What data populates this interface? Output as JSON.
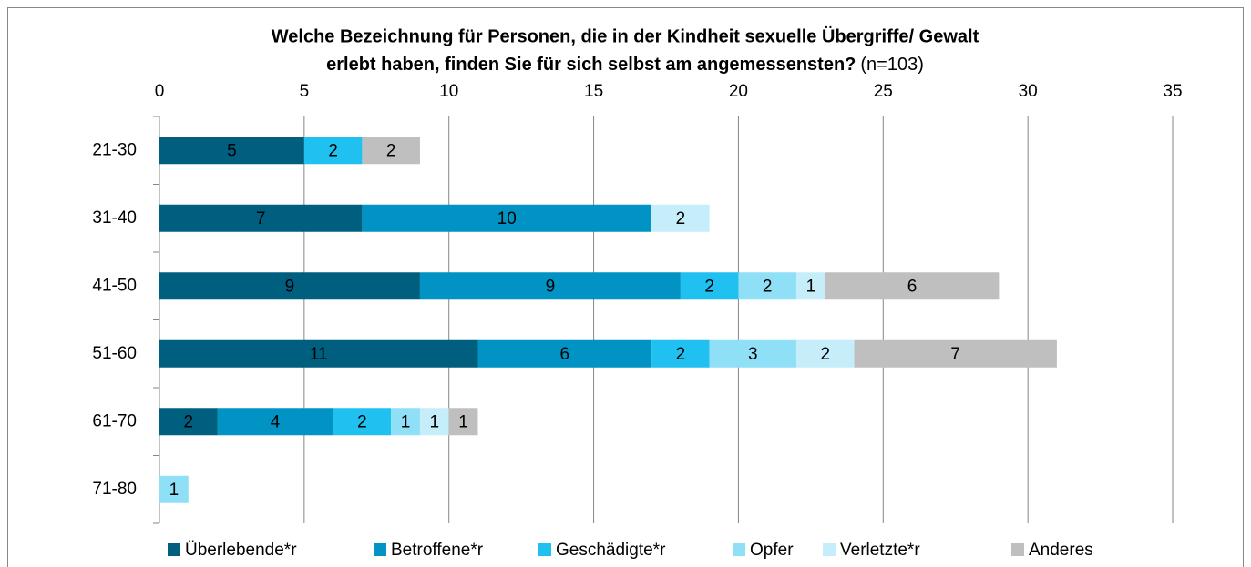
{
  "chart_data": {
    "type": "stacked_bar_horizontal",
    "title": [
      "Welche Bezeichnung für Personen, die in der Kindheit sexuelle Übergriffe/ Gewalt",
      "erlebt haben, finden Sie für sich selbst am angemessensten?"
    ],
    "title_note": "(n=103)",
    "categories": [
      "21-30",
      "31-40",
      "41-50",
      "51-60",
      "61-70",
      "71-80"
    ],
    "series": [
      {
        "name": "Überlebende*r",
        "color": "#005f7f",
        "values": [
          5,
          7,
          9,
          11,
          2,
          null
        ]
      },
      {
        "name": "Betroffene*r",
        "color": "#0093c4",
        "values": [
          null,
          10,
          9,
          6,
          4,
          null
        ]
      },
      {
        "name": "Geschädigte*r",
        "color": "#20c0f0",
        "values": [
          2,
          null,
          2,
          2,
          2,
          null
        ]
      },
      {
        "name": "Opfer",
        "color": "#8fdff6",
        "values": [
          null,
          null,
          2,
          3,
          1,
          1
        ]
      },
      {
        "name": "Verletzte*r",
        "color": "#c6eefa",
        "values": [
          null,
          2,
          1,
          2,
          1,
          null
        ]
      },
      {
        "name": "Anderes",
        "color": "#bfbfbf",
        "values": [
          2,
          null,
          6,
          7,
          1,
          null
        ]
      }
    ],
    "xlim": [
      0,
      35
    ],
    "xticks": [
      0,
      5,
      10,
      15,
      20,
      25,
      30,
      35
    ],
    "grid": true,
    "legend": "bottom"
  }
}
